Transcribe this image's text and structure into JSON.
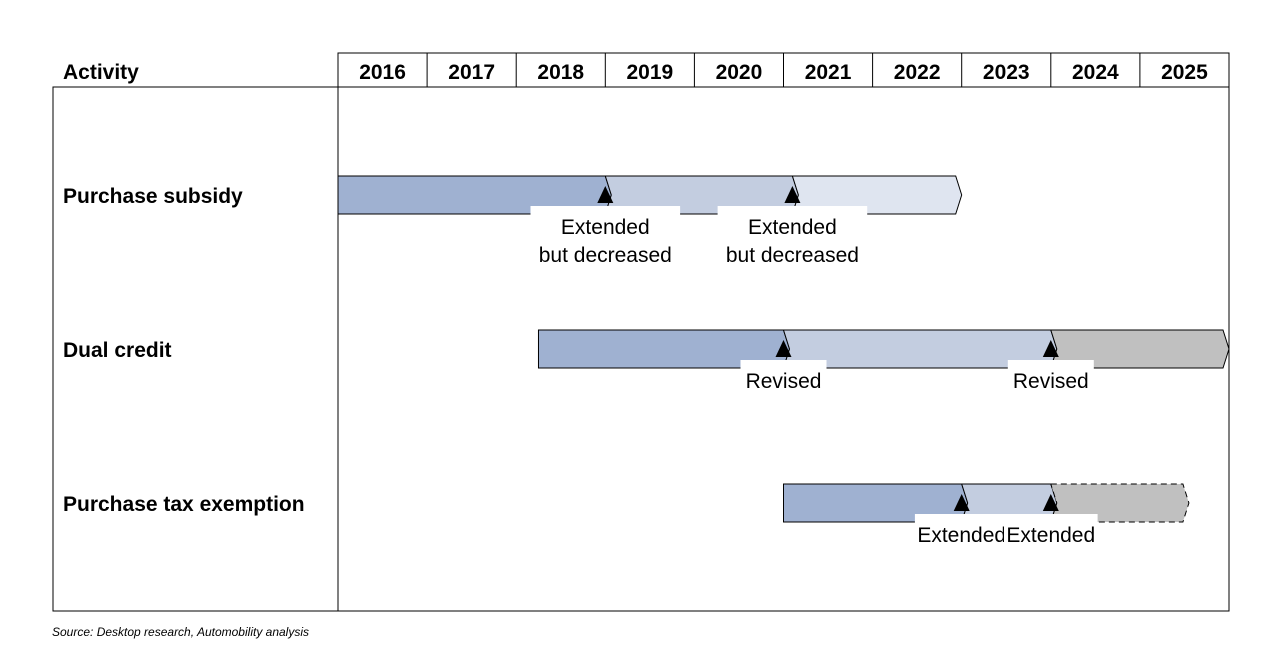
{
  "header": {
    "activity_label": "Activity",
    "years": [
      "2016",
      "2017",
      "2018",
      "2019",
      "2020",
      "2021",
      "2022",
      "2023",
      "2024",
      "2025"
    ]
  },
  "rows": [
    {
      "label": "Purchase subsidy",
      "segments": [
        {
          "start": 2016.0,
          "end": 2019.0,
          "color": "#9fb1d1",
          "dashed": false
        },
        {
          "start": 2019.0,
          "end": 2021.1,
          "color": "#c3cde0",
          "dashed": false
        },
        {
          "start": 2021.1,
          "end": 2023.0,
          "color": "#dfe5f0",
          "dashed": false
        }
      ],
      "milestones": [
        {
          "at": 2019.0,
          "label": [
            "Extended",
            "but decreased"
          ]
        },
        {
          "at": 2021.1,
          "label": [
            "Extended",
            "but decreased"
          ]
        }
      ]
    },
    {
      "label": "Dual credit",
      "segments": [
        {
          "start": 2018.25,
          "end": 2021.0,
          "color": "#9fb1d1",
          "dashed": false
        },
        {
          "start": 2021.0,
          "end": 2024.0,
          "color": "#c3cde0",
          "dashed": false
        },
        {
          "start": 2024.0,
          "end": 2026.0,
          "color": "#c0c0c0",
          "dashed": false
        }
      ],
      "milestones": [
        {
          "at": 2021.0,
          "label": [
            "Revised"
          ]
        },
        {
          "at": 2024.0,
          "label": [
            "Revised"
          ]
        }
      ]
    },
    {
      "label": "Purchase tax exemption",
      "segments": [
        {
          "start": 2021.0,
          "end": 2023.0,
          "color": "#9fb1d1",
          "dashed": false
        },
        {
          "start": 2023.0,
          "end": 2024.0,
          "color": "#c3cde0",
          "dashed": false
        },
        {
          "start": 2024.0,
          "end": 2025.55,
          "color": "#c0c0c0",
          "dashed": true
        }
      ],
      "milestones": [
        {
          "at": 2023.0,
          "label": [
            "Extended"
          ]
        },
        {
          "at": 2024.0,
          "label": [
            "Extended"
          ]
        }
      ]
    }
  ],
  "source": "Source: Desktop research, Automobility analysis"
}
